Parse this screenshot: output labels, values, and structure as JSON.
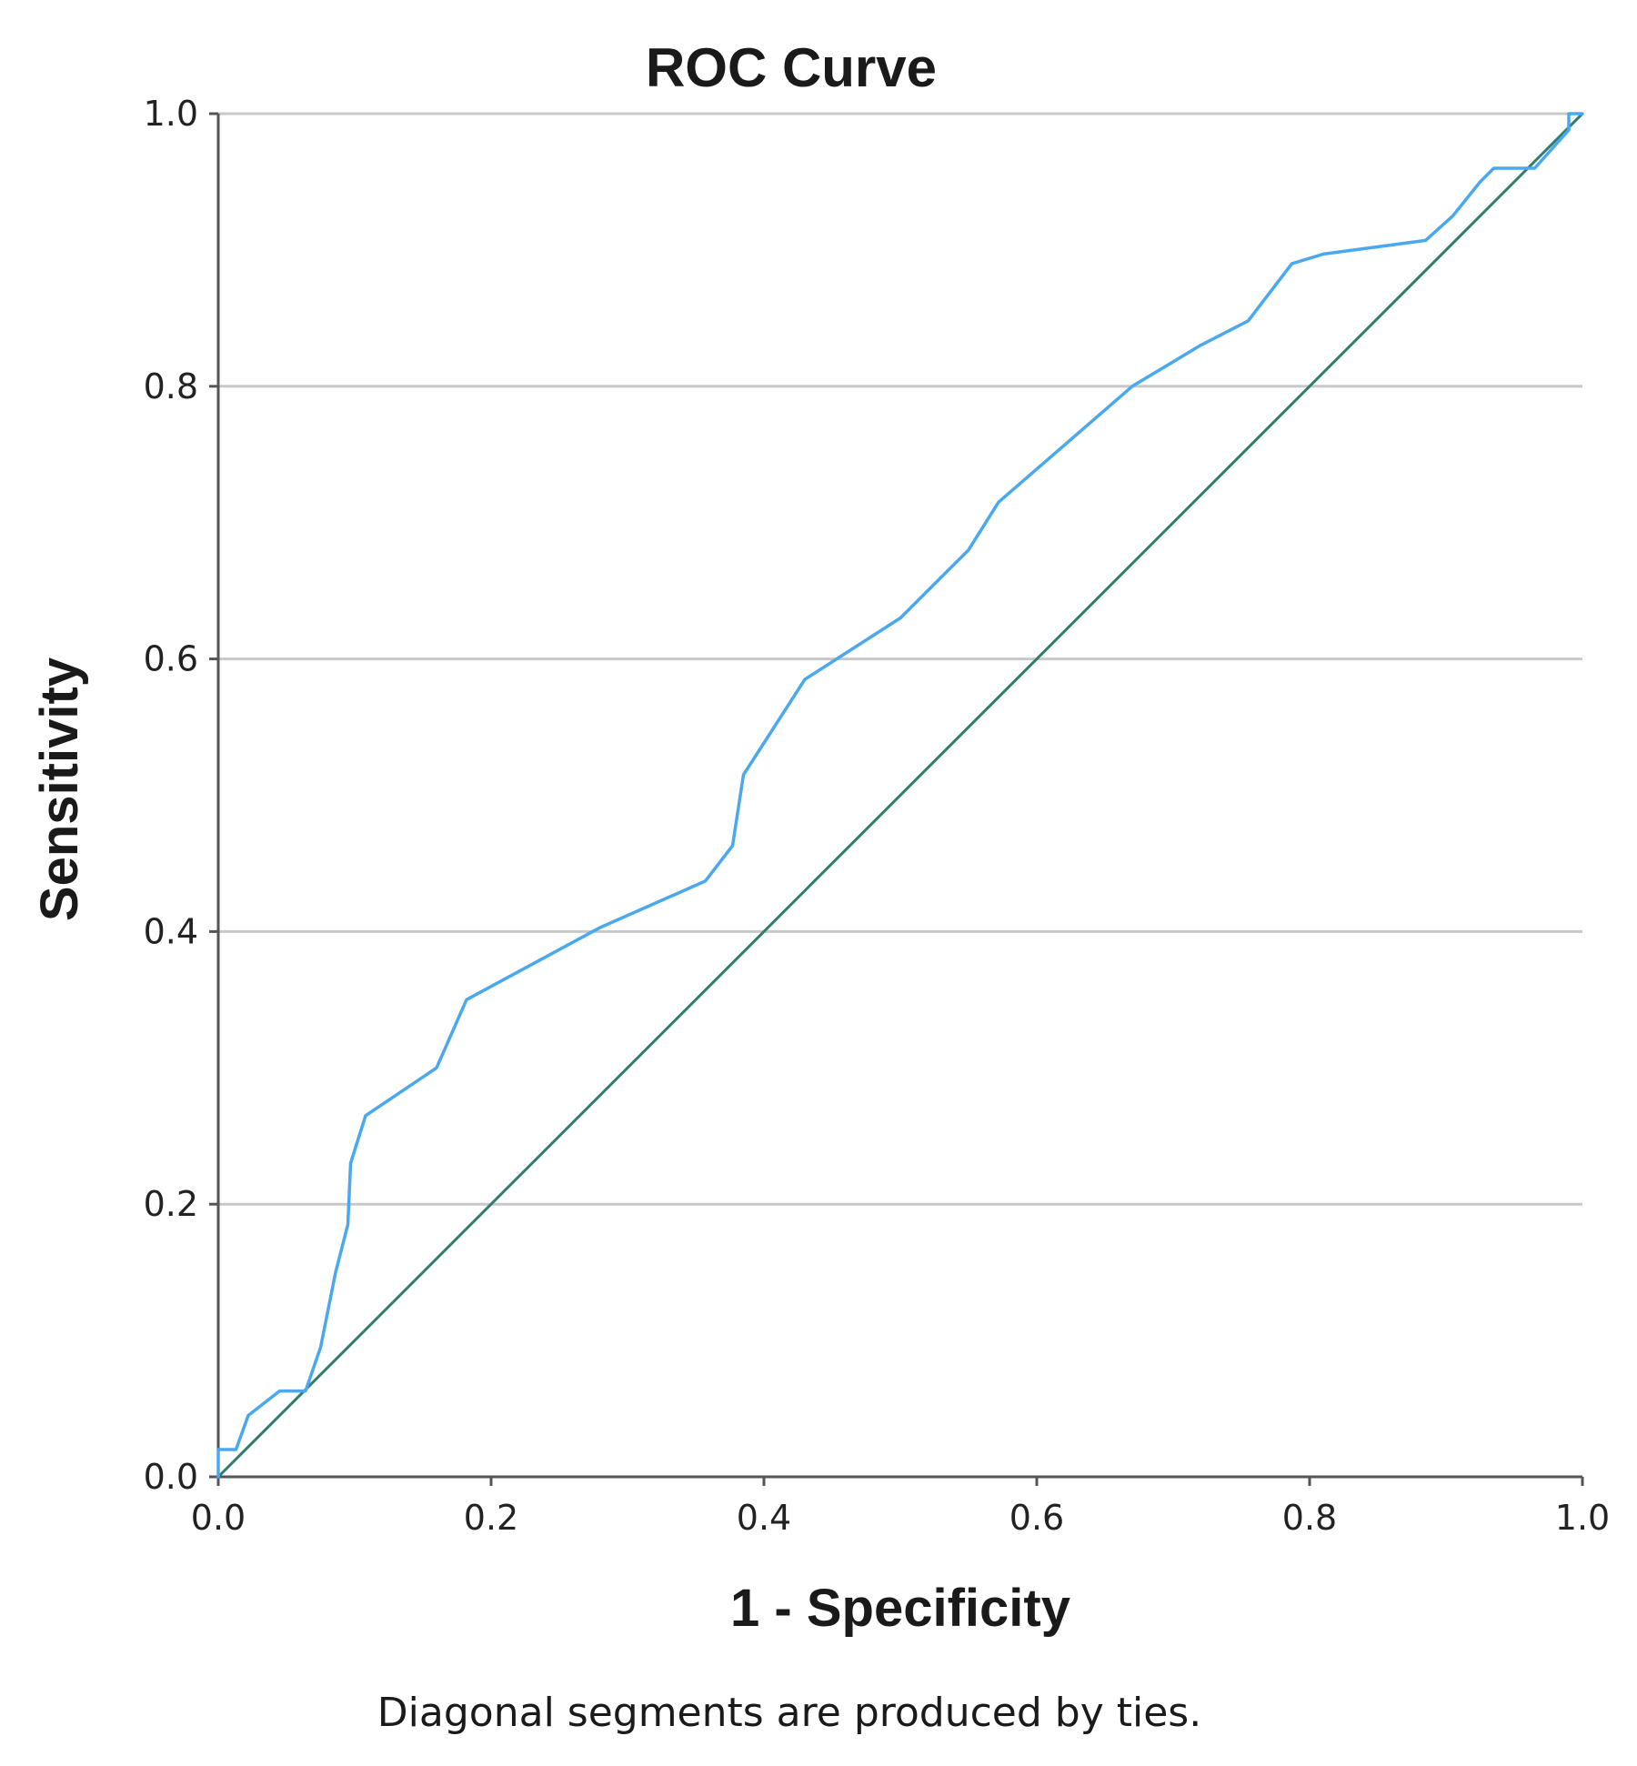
{
  "colors": {
    "roc_line": "#4aa8ee",
    "reference_line": "#2e7d6f",
    "grid": "#c8c8c8",
    "axis": "#555555",
    "text": "#1a1a1a"
  },
  "chart_data": {
    "type": "line",
    "title": "ROC Curve",
    "xlabel": "1 - Specificity",
    "ylabel": "Sensitivity",
    "footnote": "Diagonal segments are produced by ties.",
    "xlim": [
      0,
      1
    ],
    "ylim": [
      0,
      1
    ],
    "x_ticks": [
      "0.0",
      "0.2",
      "0.4",
      "0.6",
      "0.8",
      "1.0"
    ],
    "y_ticks": [
      "0.0",
      "0.2",
      "0.4",
      "0.6",
      "0.8",
      "1.0"
    ],
    "grid": "horizontal",
    "series": [
      {
        "name": "ROC",
        "x": [
          0.0,
          0.0,
          0.013,
          0.022,
          0.045,
          0.064,
          0.075,
          0.086,
          0.095,
          0.097,
          0.108,
          0.16,
          0.182,
          0.28,
          0.357,
          0.377,
          0.385,
          0.43,
          0.5,
          0.55,
          0.572,
          0.67,
          0.72,
          0.755,
          0.787,
          0.81,
          0.885,
          0.905,
          0.925,
          0.935,
          0.965,
          0.99,
          0.99,
          1.0
        ],
        "y": [
          0.0,
          0.02,
          0.02,
          0.045,
          0.063,
          0.063,
          0.095,
          0.15,
          0.185,
          0.23,
          0.265,
          0.3,
          0.35,
          0.403,
          0.437,
          0.463,
          0.515,
          0.585,
          0.63,
          0.68,
          0.715,
          0.8,
          0.83,
          0.848,
          0.89,
          0.897,
          0.907,
          0.925,
          0.95,
          0.96,
          0.96,
          0.988,
          1.0,
          1.0
        ]
      },
      {
        "name": "Reference Line",
        "x": [
          0.0,
          1.0
        ],
        "y": [
          0.0,
          1.0
        ]
      }
    ]
  }
}
